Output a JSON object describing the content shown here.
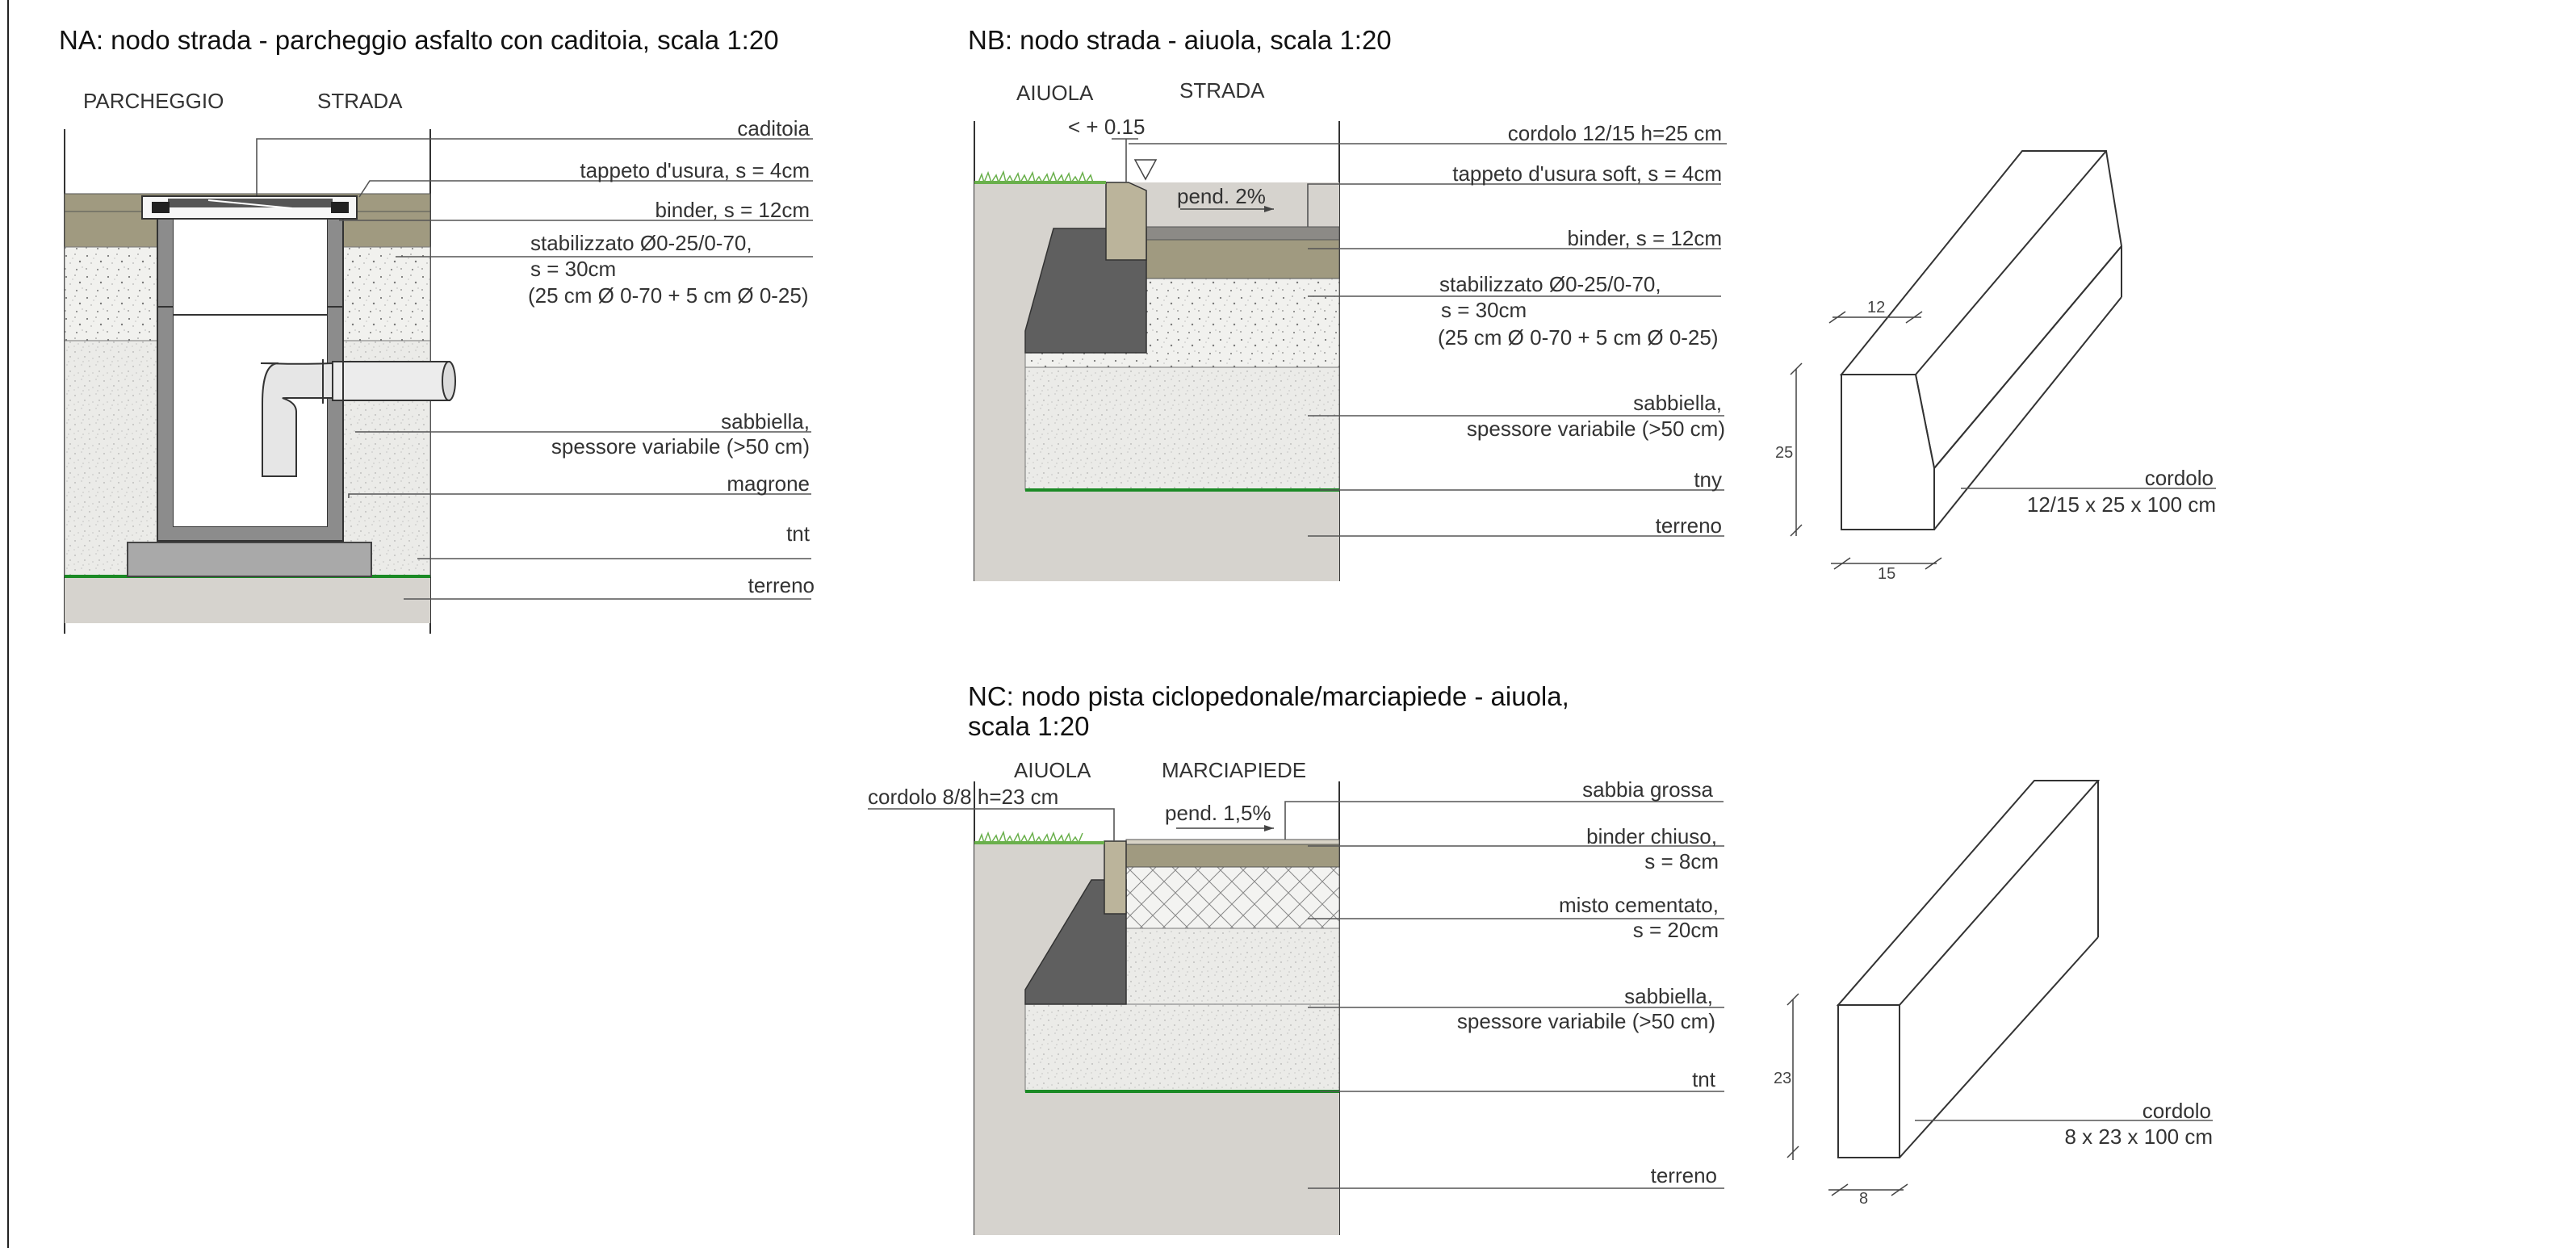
{
  "details": {
    "na": {
      "title": "NA: nodo strada - parcheggio asfalto con caditoia, scala 1:20",
      "headers": [
        "PARCHEGGIO",
        "STRADA"
      ],
      "labels": [
        "caditoia",
        "tappeto d'usura, s = 4cm",
        "binder, s = 12cm",
        "stabilizzato Ø0-25/0-70,",
        "s = 30cm",
        "(25 cm Ø 0-70 + 5 cm Ø 0-25)",
        "sabbiella,",
        "spessore variabile (>50 cm)",
        "magrone",
        "tnt",
        "terreno"
      ]
    },
    "nb": {
      "title": "NB: nodo strada - aiuola, scala 1:20",
      "headers": [
        "AIUOLA",
        "STRADA"
      ],
      "annotations": [
        "< + 0.15",
        "pend. 2%"
      ],
      "labels": [
        "cordolo 12/15 h=25 cm",
        "tappeto d'usura soft, s = 4cm",
        "binder, s = 12cm",
        "stabilizzato Ø0-25/0-70,",
        "s = 30cm",
        "(25 cm Ø 0-70 + 5 cm Ø 0-25)",
        "sabbiella,",
        "spessore variabile (>50 cm)",
        "tny",
        "terreno"
      ]
    },
    "nc": {
      "title_line1": "NC: nodo pista ciclopedonale/marciapiede - aiuola,",
      "title_line2": "scala 1:20",
      "headers": [
        "AIUOLA",
        "MARCIAPIEDE"
      ],
      "annotations": [
        "cordolo 8/8 h=23 cm",
        "pend. 1,5%"
      ],
      "labels": [
        "sabbia grossa",
        "binder chiuso,",
        "s = 8cm",
        "misto cementato,",
        "s = 20cm",
        "sabbiella,",
        "spessore variabile (>50 cm)",
        "tnt",
        "terreno"
      ]
    }
  },
  "curbs": {
    "c1": {
      "dims": [
        "12",
        "25",
        "15"
      ],
      "label": "cordolo",
      "size": "12/15 x 25 x 100 cm"
    },
    "c2": {
      "dims": [
        "23",
        "8"
      ],
      "label": "cordolo",
      "size": "8 x 23 x 100 cm"
    }
  },
  "colors": {
    "asphalt": "#a09a80",
    "gravel": "#f1f1ee",
    "sand": "#e9e9e6",
    "soil": "#d6d3ce",
    "concrete_dark": "#5f5f5f",
    "curb": "#bbb49b",
    "geotextile": "#1b8a25",
    "grass": "#6ab04c"
  }
}
